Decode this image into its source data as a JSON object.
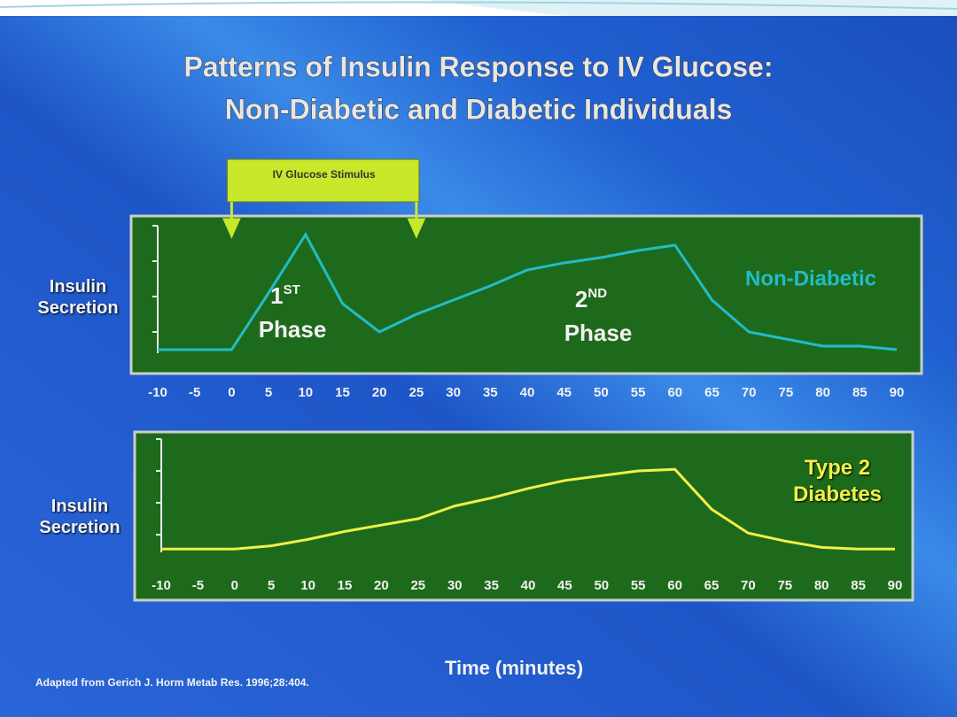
{
  "slide": {
    "title": [
      "Patterns of Insulin Response to IV Glucose:",
      "Non-Diabetic and Diabetic Individuals"
    ],
    "x_label": "Time  (minutes)",
    "source": "Adapted from Gerich J. Horm Metab Res. 1996;28:404."
  },
  "chart_data": [
    {
      "type": "line",
      "y_label": "Insulin Secretion",
      "x": [
        -10,
        -5,
        0,
        5,
        10,
        15,
        20,
        25,
        30,
        35,
        40,
        45,
        50,
        55,
        60,
        65,
        70,
        75,
        80,
        85,
        90
      ],
      "xlim": [
        -10,
        90
      ],
      "ylim": [
        0,
        4
      ],
      "yticks": [
        1,
        2,
        3,
        4
      ],
      "series": [
        {
          "name": "Non-Diabetic",
          "color": "#22bcc8",
          "values": [
            0.5,
            0.5,
            0.5,
            2.1,
            3.75,
            1.8,
            1.0,
            1.5,
            1.9,
            2.3,
            2.75,
            2.95,
            3.1,
            3.3,
            3.45,
            1.9,
            1.0,
            0.8,
            0.6,
            0.6,
            0.5
          ]
        }
      ],
      "stimulus": {
        "text": "IV Glucose Stimulus",
        "x_start": 0,
        "x_end": 25
      },
      "annotations": [
        {
          "text": "1",
          "sup": "ST",
          "label": "Phase"
        },
        {
          "text": "2",
          "sup": "ND",
          "label": "Phase"
        }
      ]
    },
    {
      "type": "line",
      "y_label": "Insulin Secretion",
      "x": [
        -10,
        -5,
        0,
        5,
        10,
        15,
        20,
        25,
        30,
        35,
        40,
        45,
        50,
        55,
        60,
        65,
        70,
        75,
        80,
        85,
        90
      ],
      "xlim": [
        -10,
        90
      ],
      "ylim": [
        0,
        4
      ],
      "yticks": [
        1,
        2,
        3,
        4
      ],
      "series": [
        {
          "name": "Type 2 Diabetes",
          "color": "#f0f048",
          "values": [
            0.55,
            0.55,
            0.55,
            0.65,
            0.85,
            1.1,
            1.3,
            1.5,
            1.9,
            2.15,
            2.45,
            2.7,
            2.85,
            3.0,
            3.05,
            1.8,
            1.05,
            0.8,
            0.6,
            0.55,
            0.55
          ]
        }
      ]
    }
  ]
}
